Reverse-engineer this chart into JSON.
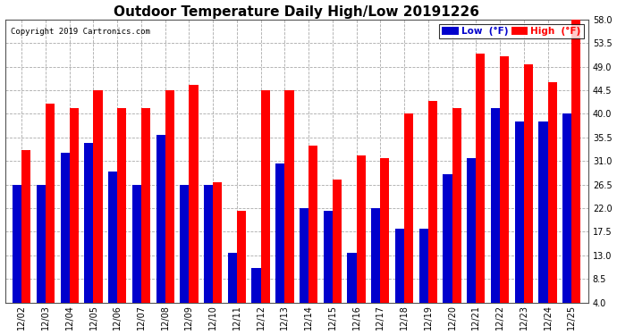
{
  "title": "Outdoor Temperature Daily High/Low 20191226",
  "copyright": "Copyright 2019 Cartronics.com",
  "dates": [
    "12/02",
    "12/03",
    "12/04",
    "12/05",
    "12/06",
    "12/07",
    "12/08",
    "12/09",
    "12/10",
    "12/11",
    "12/12",
    "12/13",
    "12/14",
    "12/15",
    "12/16",
    "12/17",
    "12/18",
    "12/19",
    "12/20",
    "12/21",
    "12/22",
    "12/23",
    "12/24",
    "12/25"
  ],
  "high": [
    33.0,
    42.0,
    41.0,
    44.5,
    41.0,
    41.0,
    44.5,
    45.5,
    27.0,
    21.5,
    44.5,
    44.5,
    34.0,
    27.5,
    32.0,
    31.5,
    40.0,
    42.5,
    41.0,
    51.5,
    51.0,
    49.5,
    46.0,
    58.0
  ],
  "low": [
    26.5,
    26.5,
    32.5,
    34.5,
    29.0,
    26.5,
    36.0,
    26.5,
    26.5,
    13.5,
    10.5,
    30.5,
    22.0,
    21.5,
    13.5,
    22.0,
    18.0,
    18.0,
    28.5,
    31.5,
    41.0,
    38.5,
    38.5,
    40.0
  ],
  "ylim_min": 4.0,
  "ylim_max": 58.0,
  "yticks": [
    4.0,
    8.5,
    13.0,
    17.5,
    22.0,
    26.5,
    31.0,
    35.5,
    40.0,
    44.5,
    49.0,
    53.5,
    58.0
  ],
  "bar_width": 0.38,
  "high_color": "#ff0000",
  "low_color": "#0000cc",
  "bg_color": "#ffffff",
  "grid_color": "#aaaaaa",
  "title_fontsize": 11,
  "tick_fontsize": 7,
  "legend_low_label": "Low  (°F)",
  "legend_high_label": "High  (°F)"
}
